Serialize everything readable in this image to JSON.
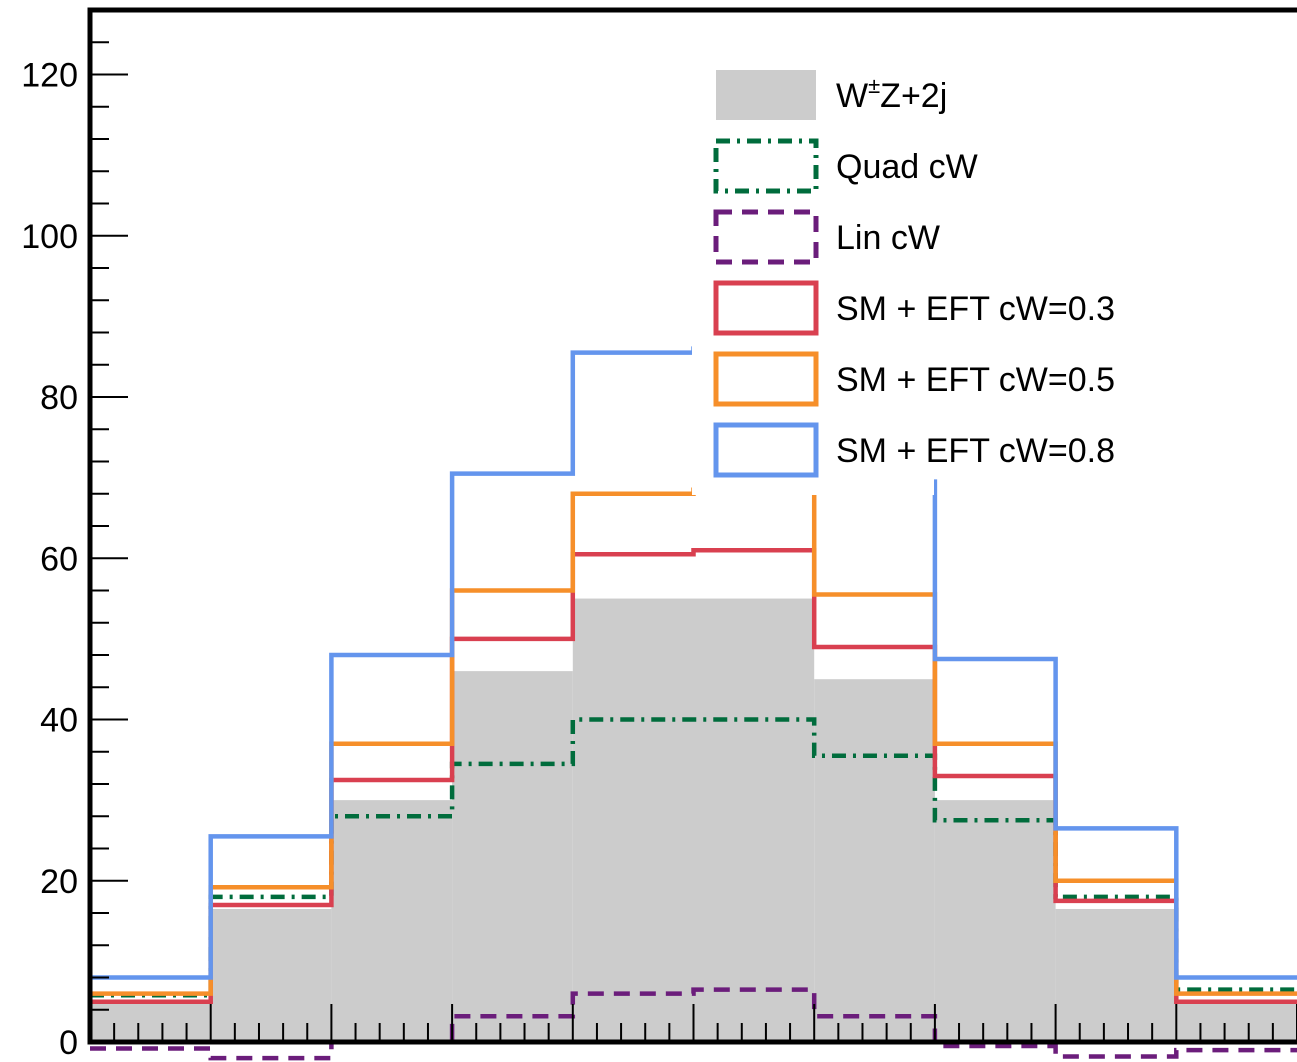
{
  "chart_data": {
    "type": "step-histogram",
    "xlim": [
      0,
      10
    ],
    "ylim": [
      0,
      128
    ],
    "y_ticks": [
      0,
      20,
      40,
      60,
      80,
      100,
      120
    ],
    "x_tick_labels": [],
    "grid": false,
    "legend_placement": "top-right",
    "background_series": {
      "name": "W±Z+2j",
      "name_base": "W",
      "name_sup": "±",
      "name_rest": "Z+2j",
      "color": "#cccccc",
      "values": [
        5.2,
        16.5,
        30.0,
        46.0,
        55.0,
        55.0,
        45.0,
        30.0,
        16.5,
        5.2
      ]
    },
    "series": [
      {
        "name": "Quad cW",
        "color": "#006c3c",
        "style": "dashdot",
        "values": [
          5.8,
          18.0,
          28.0,
          34.5,
          40.0,
          40.0,
          35.5,
          27.5,
          18.0,
          6.5
        ]
      },
      {
        "name": "Lin cW",
        "color": "#6b1d7b",
        "style": "dashed",
        "values": [
          -0.8,
          -2.0,
          0.0,
          3.2,
          6.0,
          6.5,
          3.2,
          -0.5,
          -1.8,
          -1.0
        ]
      },
      {
        "name": "SM + EFT cW=0.3",
        "color": "#d94050",
        "style": "solid",
        "values": [
          5.0,
          17.0,
          32.5,
          50.0,
          60.5,
          61.0,
          49.0,
          33.0,
          17.5,
          5.0
        ]
      },
      {
        "name": "SM + EFT cW=0.5",
        "color": "#f68f2a",
        "style": "solid",
        "values": [
          6.0,
          19.2,
          37.0,
          56.0,
          68.0,
          68.5,
          55.5,
          37.0,
          20.0,
          6.0
        ]
      },
      {
        "name": "SM + EFT cW=0.8",
        "color": "#6495ed",
        "style": "solid",
        "values": [
          8.0,
          25.5,
          48.0,
          70.5,
          85.5,
          86.0,
          69.5,
          47.5,
          26.5,
          8.0
        ]
      }
    ]
  }
}
